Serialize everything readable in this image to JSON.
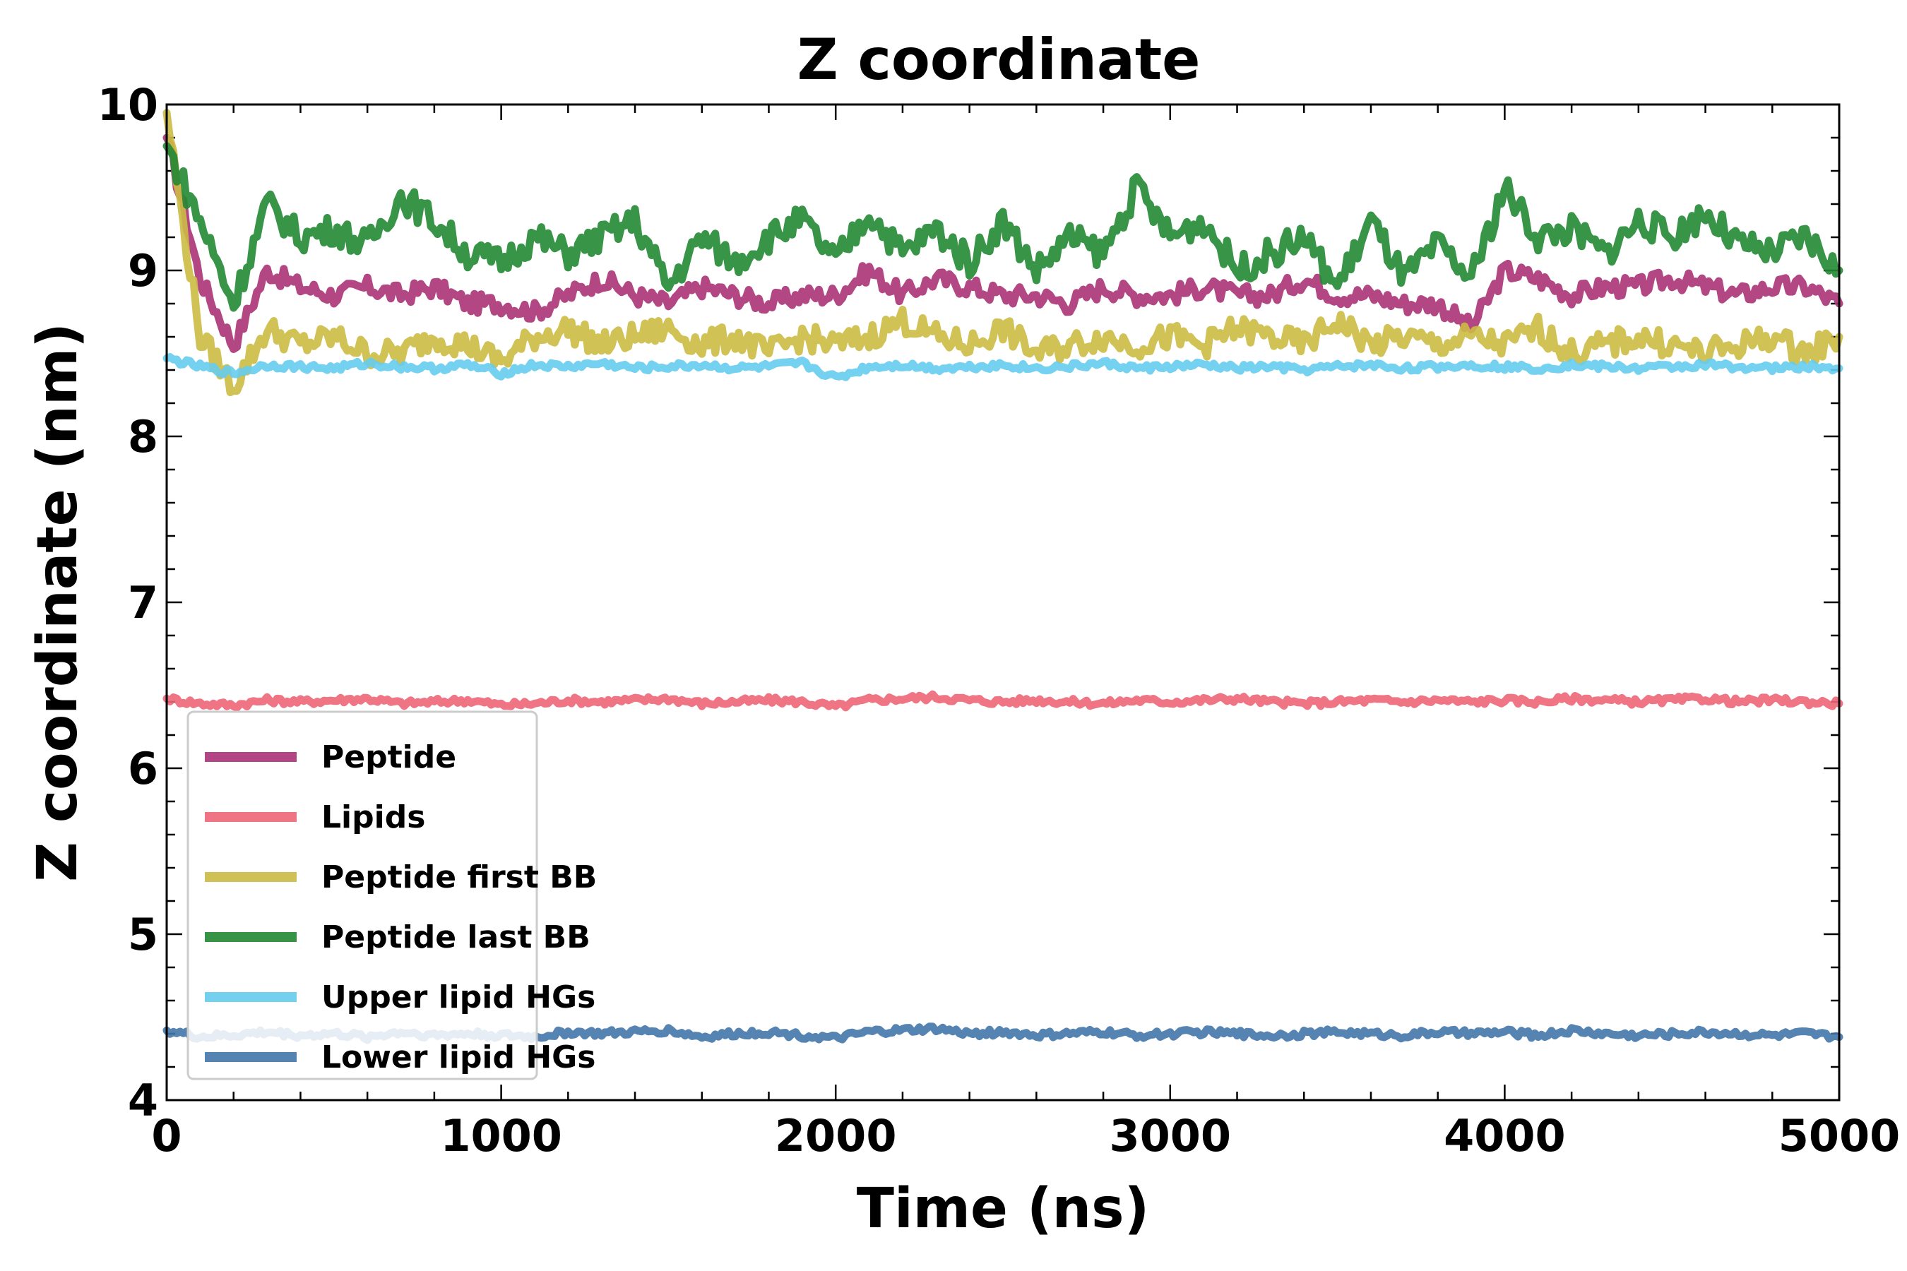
{
  "chart_data": {
    "type": "line",
    "title": "Z coordinate",
    "xlabel": "Time (ns)",
    "ylabel": "Z coordinate (nm)",
    "xlim": [
      0,
      5000
    ],
    "ylim": [
      4,
      10
    ],
    "x_ticks": [
      0,
      1000,
      2000,
      3000,
      4000,
      5000
    ],
    "x_tick_labels": [
      "0",
      "1000",
      "2000",
      "3000",
      "4000",
      "5000"
    ],
    "y_ticks": [
      4,
      5,
      6,
      7,
      8,
      9,
      10
    ],
    "y_tick_labels": [
      "4",
      "5",
      "6",
      "7",
      "8",
      "9",
      "10"
    ],
    "grid": false,
    "legend_position": "lower-left",
    "series": [
      {
        "name": "Peptide",
        "color": "#aa3377",
        "x": [
          0,
          100,
          200,
          300,
          400,
          500,
          600,
          700,
          800,
          900,
          1000,
          1100,
          1200,
          1300,
          1400,
          1500,
          1600,
          1700,
          1800,
          1900,
          2000,
          2100,
          2200,
          2300,
          2400,
          2500,
          2600,
          2700,
          2800,
          2900,
          3000,
          3100,
          3200,
          3300,
          3400,
          3500,
          3600,
          3700,
          3800,
          3900,
          4000,
          4100,
          4200,
          4300,
          4400,
          4500,
          4600,
          4700,
          4800,
          4900,
          5000
        ],
        "values": [
          9.8,
          8.95,
          8.55,
          9.0,
          8.9,
          8.85,
          8.9,
          8.85,
          8.9,
          8.8,
          8.8,
          8.75,
          8.85,
          8.95,
          8.85,
          8.8,
          8.9,
          8.85,
          8.8,
          8.85,
          8.85,
          9.0,
          8.85,
          8.95,
          8.9,
          8.85,
          8.85,
          8.8,
          8.9,
          8.85,
          8.85,
          8.9,
          8.85,
          8.85,
          8.95,
          8.85,
          8.85,
          8.8,
          8.8,
          8.65,
          9.0,
          8.95,
          8.85,
          8.9,
          8.9,
          8.95,
          8.9,
          8.85,
          8.9,
          8.9,
          8.8
        ]
      },
      {
        "name": "Lipids",
        "color": "#ee6677",
        "x": [
          0,
          100,
          200,
          300,
          400,
          500,
          600,
          700,
          800,
          900,
          1000,
          1100,
          1200,
          1300,
          1400,
          1500,
          1600,
          1700,
          1800,
          1900,
          2000,
          2100,
          2200,
          2300,
          2400,
          2500,
          2600,
          2700,
          2800,
          2900,
          3000,
          3100,
          3200,
          3300,
          3400,
          3500,
          3600,
          3700,
          3800,
          3900,
          4000,
          4100,
          4200,
          4300,
          4400,
          4500,
          4600,
          4700,
          4800,
          4900,
          5000
        ],
        "values": [
          6.42,
          6.39,
          6.38,
          6.41,
          6.4,
          6.41,
          6.42,
          6.39,
          6.4,
          6.41,
          6.38,
          6.39,
          6.41,
          6.4,
          6.41,
          6.42,
          6.39,
          6.4,
          6.41,
          6.4,
          6.37,
          6.41,
          6.42,
          6.43,
          6.41,
          6.4,
          6.41,
          6.4,
          6.39,
          6.41,
          6.4,
          6.41,
          6.42,
          6.4,
          6.39,
          6.4,
          6.41,
          6.4,
          6.41,
          6.4,
          6.41,
          6.4,
          6.42,
          6.41,
          6.4,
          6.41,
          6.42,
          6.4,
          6.41,
          6.4,
          6.39
        ]
      },
      {
        "name": "Peptide first BB",
        "color": "#ccbb44",
        "x": [
          0,
          100,
          200,
          300,
          400,
          500,
          600,
          700,
          800,
          900,
          1000,
          1100,
          1200,
          1300,
          1400,
          1500,
          1600,
          1700,
          1800,
          1900,
          2000,
          2100,
          2200,
          2300,
          2400,
          2500,
          2600,
          2700,
          2800,
          2900,
          3000,
          3100,
          3200,
          3300,
          3400,
          3500,
          3600,
          3700,
          3800,
          3900,
          4000,
          4100,
          4200,
          4300,
          4400,
          4500,
          4600,
          4700,
          4800,
          4900,
          5000
        ],
        "values": [
          9.95,
          8.6,
          8.3,
          8.65,
          8.55,
          8.6,
          8.5,
          8.5,
          8.6,
          8.55,
          8.45,
          8.6,
          8.65,
          8.55,
          8.6,
          8.65,
          8.55,
          8.6,
          8.5,
          8.6,
          8.55,
          8.6,
          8.7,
          8.6,
          8.55,
          8.65,
          8.5,
          8.55,
          8.6,
          8.55,
          8.6,
          8.55,
          8.65,
          8.6,
          8.55,
          8.7,
          8.55,
          8.6,
          8.55,
          8.6,
          8.55,
          8.65,
          8.5,
          8.55,
          8.6,
          8.55,
          8.5,
          8.55,
          8.6,
          8.5,
          8.6
        ]
      },
      {
        "name": "Peptide last BB",
        "color": "#228833",
        "x": [
          0,
          100,
          200,
          300,
          400,
          500,
          600,
          700,
          800,
          900,
          1000,
          1100,
          1200,
          1300,
          1400,
          1500,
          1600,
          1700,
          1800,
          1900,
          2000,
          2100,
          2200,
          2300,
          2400,
          2500,
          2600,
          2700,
          2800,
          2900,
          3000,
          3100,
          3200,
          3300,
          3400,
          3500,
          3600,
          3700,
          3800,
          3900,
          4000,
          4100,
          4200,
          4300,
          4400,
          4500,
          4600,
          4700,
          4800,
          4900,
          5000
        ],
        "values": [
          9.75,
          9.3,
          8.8,
          9.4,
          9.2,
          9.25,
          9.15,
          9.45,
          9.3,
          9.1,
          9.05,
          9.2,
          9.1,
          9.2,
          9.3,
          8.9,
          9.2,
          9.05,
          9.2,
          9.3,
          9.05,
          9.35,
          9.1,
          9.25,
          9.05,
          9.3,
          9.0,
          9.2,
          9.1,
          9.5,
          9.2,
          9.3,
          9.0,
          9.1,
          9.2,
          8.9,
          9.3,
          8.95,
          9.15,
          8.95,
          9.5,
          9.2,
          9.25,
          9.1,
          9.3,
          9.2,
          9.35,
          9.15,
          9.1,
          9.2,
          9.0
        ]
      },
      {
        "name": "Upper lipid HGs",
        "color": "#66ccee",
        "x": [
          0,
          100,
          200,
          300,
          400,
          500,
          600,
          700,
          800,
          900,
          1000,
          1100,
          1200,
          1300,
          1400,
          1500,
          1600,
          1700,
          1800,
          1900,
          2000,
          2100,
          2200,
          2300,
          2400,
          2500,
          2600,
          2700,
          2800,
          2900,
          3000,
          3100,
          3200,
          3300,
          3400,
          3500,
          3600,
          3700,
          3800,
          3900,
          4000,
          4100,
          4200,
          4300,
          4400,
          4500,
          4600,
          4700,
          4800,
          4900,
          5000
        ],
        "values": [
          8.47,
          8.42,
          8.38,
          8.43,
          8.42,
          8.41,
          8.44,
          8.42,
          8.41,
          8.43,
          8.38,
          8.43,
          8.42,
          8.44,
          8.41,
          8.42,
          8.43,
          8.41,
          8.42,
          8.44,
          8.35,
          8.42,
          8.43,
          8.41,
          8.42,
          8.43,
          8.41,
          8.42,
          8.44,
          8.41,
          8.42,
          8.43,
          8.41,
          8.42,
          8.4,
          8.42,
          8.43,
          8.41,
          8.42,
          8.43,
          8.42,
          8.41,
          8.43,
          8.42,
          8.41,
          8.42,
          8.43,
          8.42,
          8.41,
          8.42,
          8.41
        ]
      },
      {
        "name": "Lower lipid HGs",
        "color": "#4477aa",
        "x": [
          0,
          100,
          200,
          300,
          400,
          500,
          600,
          700,
          800,
          900,
          1000,
          1100,
          1200,
          1300,
          1400,
          1500,
          1600,
          1700,
          1800,
          1900,
          2000,
          2100,
          2200,
          2300,
          2400,
          2500,
          2600,
          2700,
          2800,
          2900,
          3000,
          3100,
          3200,
          3300,
          3400,
          3500,
          3600,
          3700,
          3800,
          3900,
          4000,
          4100,
          4200,
          4300,
          4400,
          4500,
          4600,
          4700,
          4800,
          4900,
          5000
        ],
        "values": [
          4.42,
          4.38,
          4.39,
          4.41,
          4.39,
          4.4,
          4.38,
          4.41,
          4.39,
          4.4,
          4.39,
          4.38,
          4.41,
          4.4,
          4.41,
          4.42,
          4.38,
          4.4,
          4.41,
          4.39,
          4.37,
          4.41,
          4.42,
          4.43,
          4.4,
          4.41,
          4.39,
          4.4,
          4.41,
          4.39,
          4.4,
          4.41,
          4.4,
          4.39,
          4.4,
          4.41,
          4.4,
          4.39,
          4.41,
          4.4,
          4.41,
          4.39,
          4.42,
          4.4,
          4.39,
          4.4,
          4.41,
          4.4,
          4.39,
          4.4,
          4.38
        ]
      }
    ]
  }
}
